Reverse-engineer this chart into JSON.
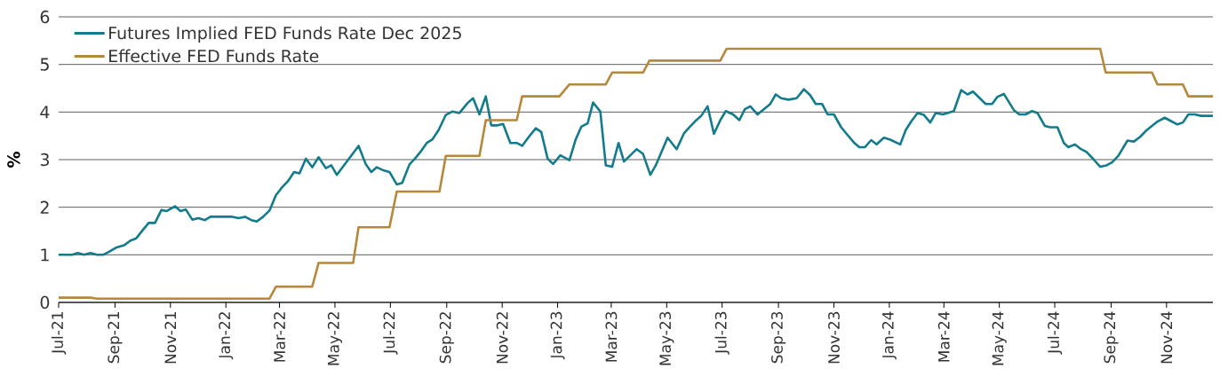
{
  "chart_data": {
    "type": "line",
    "ylabel": "%",
    "xlim": [
      "2021-07-01",
      "2024-12-22"
    ],
    "xticks": [
      {
        "value": "2021-07-01",
        "label": "Jul-21"
      },
      {
        "value": "2021-09-01",
        "label": "Sep-21"
      },
      {
        "value": "2021-11-01",
        "label": "Nov-21"
      },
      {
        "value": "2022-01-01",
        "label": "Jan-22"
      },
      {
        "value": "2022-03-01",
        "label": "Mar-22"
      },
      {
        "value": "2022-05-01",
        "label": "May-22"
      },
      {
        "value": "2022-07-01",
        "label": "Jul-22"
      },
      {
        "value": "2022-09-01",
        "label": "Sep-22"
      },
      {
        "value": "2022-11-01",
        "label": "Nov-22"
      },
      {
        "value": "2023-01-01",
        "label": "Jan-23"
      },
      {
        "value": "2023-03-01",
        "label": "Mar-23"
      },
      {
        "value": "2023-05-01",
        "label": "May-23"
      },
      {
        "value": "2023-07-01",
        "label": "Jul-23"
      },
      {
        "value": "2023-09-01",
        "label": "Sep-23"
      },
      {
        "value": "2023-11-01",
        "label": "Nov-23"
      },
      {
        "value": "2024-01-01",
        "label": "Jan-24"
      },
      {
        "value": "2024-03-01",
        "label": "Mar-24"
      },
      {
        "value": "2024-05-01",
        "label": "May-24"
      },
      {
        "value": "2024-07-01",
        "label": "Jul-24"
      },
      {
        "value": "2024-09-01",
        "label": "Sep-24"
      },
      {
        "value": "2024-11-01",
        "label": "Nov-24"
      }
    ],
    "ylim": [
      0,
      6
    ],
    "yticks": [
      0,
      1,
      2,
      3,
      4,
      5,
      6
    ],
    "grid": "y",
    "legend": "top left",
    "series": [
      {
        "name": "Futures Implied FED Funds Rate Dec 2025",
        "color": "#137c8c",
        "x": [
          "2021-07-01",
          "2021-07-16",
          "2021-07-22",
          "2021-07-29",
          "2021-08-05",
          "2021-08-12",
          "2021-08-19",
          "2021-08-25",
          "2021-09-02",
          "2021-09-11",
          "2021-09-18",
          "2021-09-24",
          "2021-10-02",
          "2021-10-08",
          "2021-10-15",
          "2021-10-22",
          "2021-10-28",
          "2021-11-06",
          "2021-11-12",
          "2021-11-18",
          "2021-11-25",
          "2021-12-02",
          "2021-12-09",
          "2021-12-15",
          "2022-01-08",
          "2022-01-15",
          "2022-01-22",
          "2022-01-29",
          "2022-02-04",
          "2022-02-11",
          "2022-02-18",
          "2022-02-25",
          "2022-03-03",
          "2022-03-10",
          "2022-03-17",
          "2022-03-23",
          "2022-03-30",
          "2022-04-06",
          "2022-04-13",
          "2022-04-21",
          "2022-04-27",
          "2022-05-03",
          "2022-05-27",
          "2022-06-04",
          "2022-06-10",
          "2022-06-16",
          "2022-06-24",
          "2022-06-30",
          "2022-07-08",
          "2022-07-14",
          "2022-07-22",
          "2022-07-28",
          "2022-08-03",
          "2022-08-10",
          "2022-08-16",
          "2022-08-23",
          "2022-08-31",
          "2022-09-07",
          "2022-09-15",
          "2022-09-24",
          "2022-09-30",
          "2022-10-07",
          "2022-10-14",
          "2022-10-20",
          "2022-10-27",
          "2022-11-02",
          "2022-11-10",
          "2022-11-17",
          "2022-11-23",
          "2022-11-30",
          "2022-12-08",
          "2022-12-14",
          "2022-12-21",
          "2022-12-27",
          "2023-01-04",
          "2023-01-14",
          "2023-01-21",
          "2023-01-27",
          "2023-02-03",
          "2023-02-09",
          "2023-02-17",
          "2023-02-23",
          "2023-03-02",
          "2023-03-09",
          "2023-03-15",
          "2023-03-29",
          "2023-04-05",
          "2023-04-13",
          "2023-04-19",
          "2023-05-02",
          "2023-05-12",
          "2023-05-20",
          "2023-05-27",
          "2023-06-01",
          "2023-06-08",
          "2023-06-15",
          "2023-06-22",
          "2023-06-29",
          "2023-07-05",
          "2023-07-13",
          "2023-07-20",
          "2023-07-26",
          "2023-08-01",
          "2023-08-09",
          "2023-08-23",
          "2023-08-29",
          "2023-09-04",
          "2023-09-12",
          "2023-09-21",
          "2023-09-29",
          "2023-10-06",
          "2023-10-12",
          "2023-10-19",
          "2023-10-25",
          "2023-11-01",
          "2023-11-09",
          "2023-11-15",
          "2023-11-23",
          "2023-11-29",
          "2023-12-05",
          "2023-12-12",
          "2023-12-18",
          "2023-12-26",
          "2024-01-02",
          "2024-01-13",
          "2024-01-19",
          "2024-01-25",
          "2024-02-01",
          "2024-02-08",
          "2024-02-15",
          "2024-02-21",
          "2024-02-29",
          "2024-03-12",
          "2024-03-20",
          "2024-03-27",
          "2024-04-02",
          "2024-04-16",
          "2024-04-23",
          "2024-04-29",
          "2024-05-06",
          "2024-05-17",
          "2024-05-23",
          "2024-05-30",
          "2024-06-06",
          "2024-06-12",
          "2024-06-20",
          "2024-06-26",
          "2024-07-04",
          "2024-07-11",
          "2024-07-16",
          "2024-07-23",
          "2024-07-30",
          "2024-08-05",
          "2024-08-13",
          "2024-08-20",
          "2024-08-27",
          "2024-09-02",
          "2024-09-09",
          "2024-09-19",
          "2024-09-26",
          "2024-10-03",
          "2024-10-09",
          "2024-10-22",
          "2024-10-30",
          "2024-11-05",
          "2024-11-13",
          "2024-11-19",
          "2024-11-25",
          "2024-12-02",
          "2024-12-09",
          "2024-12-22"
        ],
        "values": [
          1.0,
          1.0,
          1.04,
          1.0,
          1.04,
          1.0,
          1.0,
          1.06,
          1.15,
          1.2,
          1.3,
          1.34,
          1.53,
          1.67,
          1.67,
          1.94,
          1.92,
          2.02,
          1.92,
          1.95,
          1.74,
          1.77,
          1.73,
          1.8,
          1.8,
          1.77,
          1.8,
          1.73,
          1.7,
          1.8,
          1.93,
          2.25,
          2.4,
          2.54,
          2.74,
          2.71,
          3.02,
          2.84,
          3.05,
          2.82,
          2.88,
          2.68,
          3.29,
          2.9,
          2.74,
          2.84,
          2.77,
          2.74,
          2.48,
          2.51,
          2.9,
          3.02,
          3.16,
          3.35,
          3.42,
          3.62,
          3.94,
          4.01,
          3.98,
          4.19,
          4.29,
          3.95,
          4.33,
          3.72,
          3.72,
          3.75,
          3.35,
          3.35,
          3.29,
          3.47,
          3.66,
          3.58,
          3.02,
          2.91,
          3.09,
          2.99,
          3.43,
          3.69,
          3.76,
          4.2,
          4.01,
          2.88,
          2.85,
          3.35,
          2.96,
          3.22,
          3.12,
          2.68,
          2.88,
          3.46,
          3.22,
          3.55,
          3.7,
          3.8,
          3.92,
          4.12,
          3.54,
          3.83,
          4.02,
          3.95,
          3.83,
          4.06,
          4.12,
          3.95,
          4.17,
          4.37,
          4.29,
          4.26,
          4.29,
          4.48,
          4.35,
          4.17,
          4.17,
          3.95,
          3.95,
          3.68,
          3.54,
          3.36,
          3.26,
          3.26,
          3.41,
          3.32,
          3.46,
          3.42,
          3.32,
          3.62,
          3.8,
          3.98,
          3.94,
          3.78,
          3.98,
          3.95,
          4.02,
          4.46,
          4.37,
          4.43,
          4.17,
          4.17,
          4.32,
          4.38,
          4.04,
          3.95,
          3.95,
          4.02,
          3.98,
          3.71,
          3.68,
          3.68,
          3.35,
          3.26,
          3.32,
          3.22,
          3.16,
          3.0,
          2.85,
          2.88,
          2.94,
          3.08,
          3.4,
          3.38,
          3.48,
          3.6,
          3.8,
          3.88,
          3.82,
          3.74,
          3.78,
          3.95,
          3.95,
          3.92,
          3.92
        ]
      },
      {
        "name": "Effective FED Funds Rate",
        "color": "#b8883a",
        "x": [
          "2021-07-01",
          "2021-08-05",
          "2021-08-12",
          "2022-02-18",
          "2022-02-25",
          "2022-04-06",
          "2022-04-13",
          "2022-05-21",
          "2022-05-27",
          "2022-06-30",
          "2022-07-08",
          "2022-08-24",
          "2022-08-31",
          "2022-10-07",
          "2022-10-14",
          "2022-11-17",
          "2022-11-23",
          "2023-01-03",
          "2023-01-14",
          "2023-02-23",
          "2023-03-02",
          "2023-04-05",
          "2023-04-12",
          "2023-06-29",
          "2023-07-06",
          "2024-08-20",
          "2024-08-26",
          "2024-10-16",
          "2024-10-22",
          "2024-11-19",
          "2024-11-25",
          "2024-12-22"
        ],
        "values": [
          0.1,
          0.1,
          0.08,
          0.08,
          0.33,
          0.33,
          0.83,
          0.83,
          1.58,
          1.58,
          2.33,
          2.33,
          3.08,
          3.08,
          3.83,
          3.83,
          4.33,
          4.33,
          4.58,
          4.58,
          4.83,
          4.83,
          5.08,
          5.08,
          5.33,
          5.33,
          4.83,
          4.83,
          4.58,
          4.58,
          4.33,
          4.33
        ]
      }
    ]
  }
}
